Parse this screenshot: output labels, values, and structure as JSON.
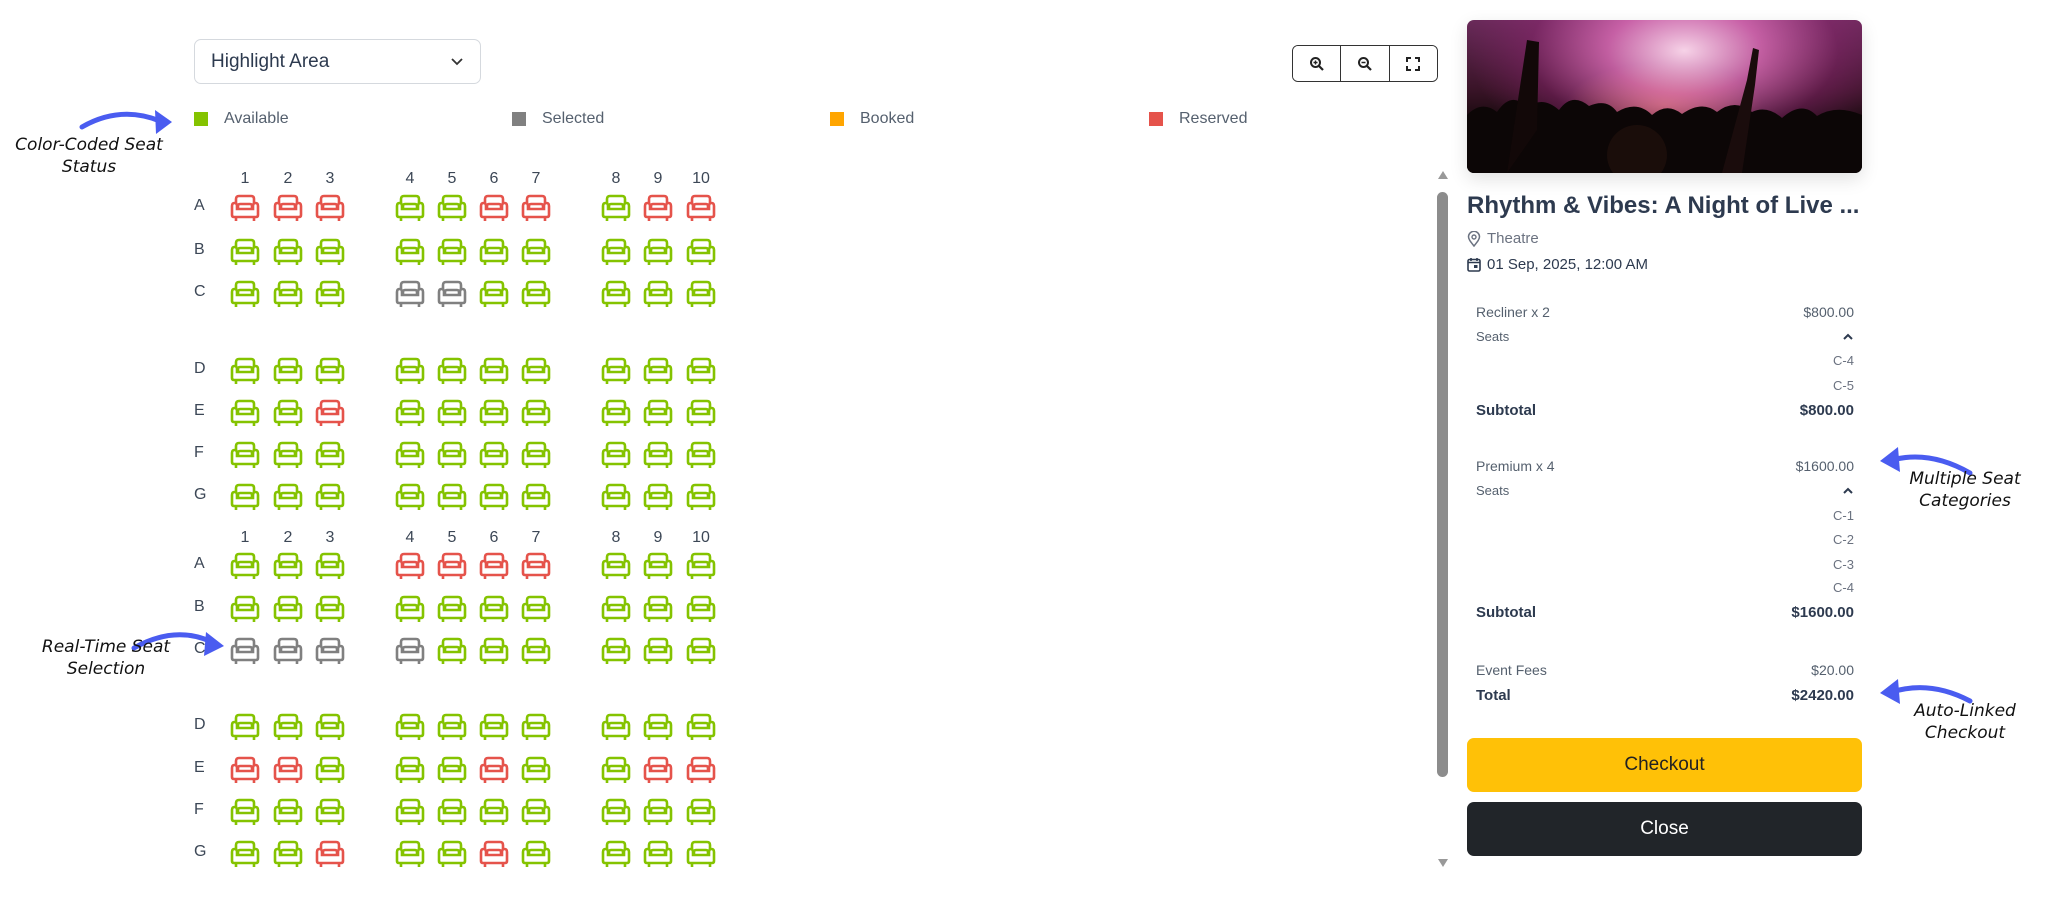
{
  "toolbar": {
    "highlight_dropdown": {
      "selected": "Highlight Area",
      "icon": "chevron-down-icon"
    },
    "zoom_buttons": [
      {
        "name": "zoom-in",
        "icon": "zoom-in-icon"
      },
      {
        "name": "zoom-out",
        "icon": "zoom-out-icon"
      },
      {
        "name": "fit-screen",
        "icon": "expand-icon"
      }
    ]
  },
  "legend": [
    {
      "label": "Available",
      "color": "#84c300",
      "code": "A"
    },
    {
      "label": "Selected",
      "color": "#808080",
      "code": "S"
    },
    {
      "label": "Booked",
      "color": "#ffa500",
      "code": "B"
    },
    {
      "label": "Reserved",
      "color": "#e5534b",
      "code": "R"
    }
  ],
  "seat_map": {
    "columns": [
      "1",
      "2",
      "3",
      "4",
      "5",
      "6",
      "7",
      "8",
      "9",
      "10"
    ],
    "sections": [
      {
        "rows": [
          {
            "label": "A",
            "seats": [
              "R",
              "R",
              "R",
              "A",
              "A",
              "R",
              "R",
              "A",
              "R",
              "R"
            ]
          },
          {
            "label": "B",
            "seats": [
              "A",
              "A",
              "A",
              "A",
              "A",
              "A",
              "A",
              "A",
              "A",
              "A"
            ]
          },
          {
            "label": "C",
            "seats": [
              "A",
              "A",
              "A",
              "S",
              "S",
              "A",
              "A",
              "A",
              "A",
              "A"
            ]
          },
          {
            "label": "D",
            "seats": [
              "A",
              "A",
              "A",
              "A",
              "A",
              "A",
              "A",
              "A",
              "A",
              "A"
            ]
          },
          {
            "label": "E",
            "seats": [
              "A",
              "A",
              "R",
              "A",
              "A",
              "A",
              "A",
              "A",
              "A",
              "A"
            ]
          },
          {
            "label": "F",
            "seats": [
              "A",
              "A",
              "A",
              "A",
              "A",
              "A",
              "A",
              "A",
              "A",
              "A"
            ]
          },
          {
            "label": "G",
            "seats": [
              "A",
              "A",
              "A",
              "A",
              "A",
              "A",
              "A",
              "A",
              "A",
              "A"
            ]
          }
        ]
      },
      {
        "rows": [
          {
            "label": "A",
            "seats": [
              "A",
              "A",
              "A",
              "R",
              "R",
              "R",
              "R",
              "A",
              "A",
              "A"
            ]
          },
          {
            "label": "B",
            "seats": [
              "A",
              "A",
              "A",
              "A",
              "A",
              "A",
              "A",
              "A",
              "A",
              "A"
            ]
          },
          {
            "label": "C",
            "seats": [
              "S",
              "S",
              "S",
              "S",
              "A",
              "A",
              "A",
              "A",
              "A",
              "A"
            ]
          },
          {
            "label": "D",
            "seats": [
              "A",
              "A",
              "A",
              "A",
              "A",
              "A",
              "A",
              "A",
              "A",
              "A"
            ]
          },
          {
            "label": "E",
            "seats": [
              "R",
              "R",
              "A",
              "A",
              "A",
              "R",
              "A",
              "A",
              "R",
              "R"
            ]
          },
          {
            "label": "F",
            "seats": [
              "A",
              "A",
              "A",
              "A",
              "A",
              "A",
              "A",
              "A",
              "A",
              "A"
            ]
          },
          {
            "label": "G",
            "seats": [
              "A",
              "A",
              "R",
              "A",
              "A",
              "R",
              "A",
              "A",
              "A",
              "A"
            ]
          }
        ]
      }
    ]
  },
  "event": {
    "title": "Rhythm & Vibes: A Night of Live ...",
    "venue": "Theatre",
    "venue_icon": "map-pin-icon",
    "datetime": "01 Sep, 2025, 12:00 AM",
    "date_icon": "calendar-icon"
  },
  "summary": {
    "categories": [
      {
        "label": "Recliner x 2",
        "amount": "$800.00",
        "seats_label": "Seats",
        "seats": [
          "C-4",
          "C-5"
        ],
        "subtotal_label": "Subtotal",
        "subtotal": "$800.00"
      },
      {
        "label": "Premium x 4",
        "amount": "$1600.00",
        "seats_label": "Seats",
        "seats": [
          "C-1",
          "C-2",
          "C-3",
          "C-4"
        ],
        "subtotal_label": "Subtotal",
        "subtotal": "$1600.00"
      }
    ],
    "fees_label": "Event Fees",
    "fees": "$20.00",
    "total_label": "Total",
    "total": "$2420.00"
  },
  "actions": {
    "checkout": "Checkout",
    "close": "Close",
    "checkout_color": "#ffc107",
    "close_color": "#212529"
  },
  "annotations": {
    "color_coded": "Color-Coded Seat Status",
    "realtime": "Real-Time Seat Selection",
    "multiple": "Multiple Seat Categories",
    "autolinked": "Auto-Linked Checkout",
    "arrow_color": "#4a5cf0"
  }
}
